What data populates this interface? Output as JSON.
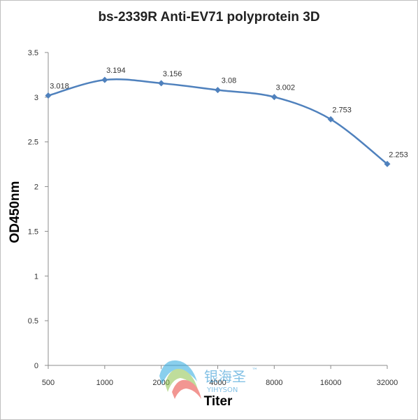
{
  "chart_data": {
    "type": "line",
    "title": "bs-2339R Anti-EV71 polyprotein 3D",
    "xlabel": "Titer",
    "ylabel": "OD450nm",
    "categories": [
      "500",
      "1000",
      "2000",
      "4000",
      "8000",
      "16000",
      "32000"
    ],
    "series": [
      {
        "values": [
          3.018,
          3.194,
          3.156,
          3.08,
          3.002,
          2.753,
          2.253
        ]
      }
    ],
    "data_labels": [
      "3.018",
      "3.194",
      "3.156",
      "3.08",
      "3.002",
      "2.753",
      "2.253"
    ],
    "ylim": [
      0,
      3.5
    ],
    "yticks": [
      "0",
      "0.5",
      "1",
      "1.5",
      "2",
      "2.5",
      "3",
      "3.5"
    ],
    "grid": false,
    "line_color": "#4f81bd"
  },
  "watermark": {
    "chinese": "银海圣",
    "tm": "™",
    "latin": "YIHYSON"
  }
}
